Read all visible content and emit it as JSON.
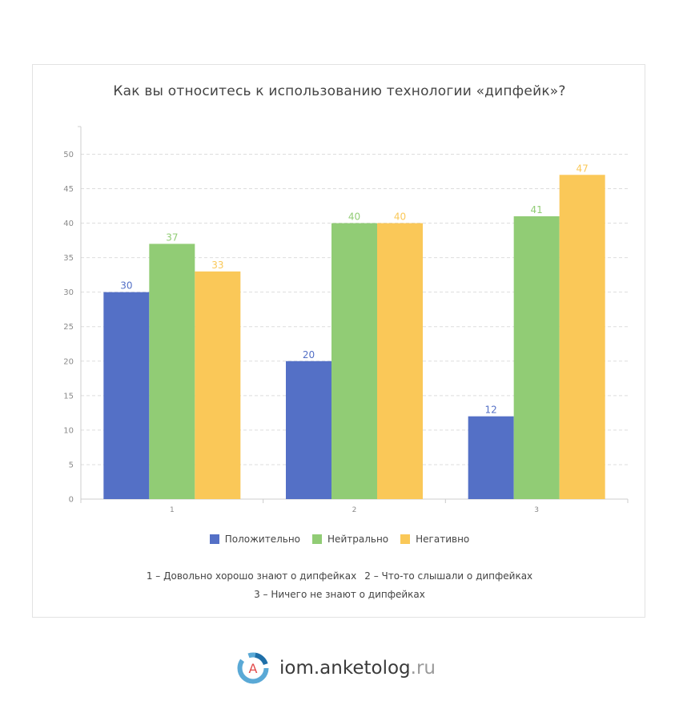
{
  "chart_data": {
    "type": "bar",
    "title": "Как вы относитесь к использованию технологии «дипфейк»?",
    "categories": [
      "1",
      "2",
      "3"
    ],
    "series": [
      {
        "name": "Положительно",
        "color": "#5470c6",
        "values": [
          30,
          20,
          12
        ]
      },
      {
        "name": "Нейтрально",
        "color": "#91cc75",
        "values": [
          37,
          40,
          41
        ]
      },
      {
        "name": "Негативно",
        "color": "#fac858",
        "values": [
          33,
          40,
          47
        ]
      }
    ],
    "ylim": [
      0,
      54
    ],
    "yticks": [
      0,
      5,
      10,
      15,
      20,
      25,
      30,
      35,
      40,
      45,
      50
    ],
    "grid": true,
    "legend": "bottom"
  },
  "notes": {
    "note1": "1 – Довольно хорошо знают о дипфейках",
    "note2": "2 – Что-то слышали о дипфейках",
    "note3": "3 – Ничего не знают о дипфейках"
  },
  "footer": {
    "logo_letter": "A",
    "brand": "iom.anketolog",
    "suffix": ".ru"
  }
}
